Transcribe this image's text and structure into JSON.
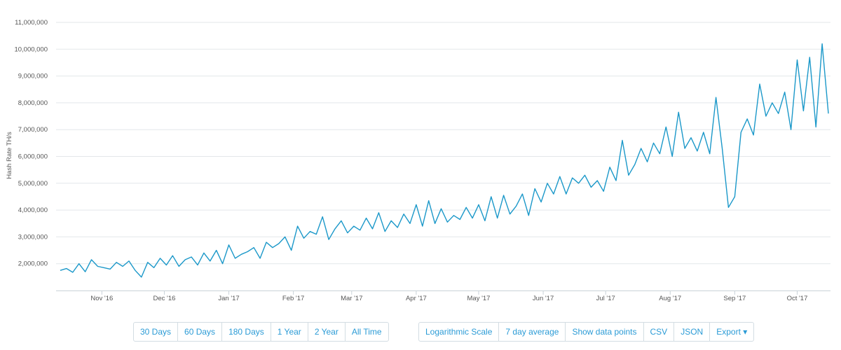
{
  "chart_data": {
    "type": "line",
    "title": "",
    "xlabel": "",
    "ylabel": "Hash Rate TH/s",
    "y_ticks": [
      2000000,
      3000000,
      4000000,
      5000000,
      6000000,
      7000000,
      8000000,
      9000000,
      10000000,
      11000000
    ],
    "y_tick_labels": [
      "2,000,000",
      "3,000,000",
      "4,000,000",
      "5,000,000",
      "6,000,000",
      "7,000,000",
      "8,000,000",
      "9,000,000",
      "10,000,000",
      "11,000,000"
    ],
    "ylim": [
      1000000,
      11000000
    ],
    "xlim": [
      "2016-10-10",
      "2017-10-17"
    ],
    "x_ticks": [
      "2016-11-01",
      "2016-12-01",
      "2017-01-01",
      "2017-02-01",
      "2017-03-01",
      "2017-04-01",
      "2017-05-01",
      "2017-06-01",
      "2017-07-01",
      "2017-08-01",
      "2017-09-01",
      "2017-10-01"
    ],
    "x_tick_labels": [
      "Nov '16",
      "Dec '16",
      "Jan '17",
      "Feb '17",
      "Mar '17",
      "Apr '17",
      "May '17",
      "Jun '17",
      "Jul '17",
      "Aug '17",
      "Sep '17",
      "Oct '17"
    ],
    "grid": true,
    "line_color": "#1b98c9",
    "series": [
      {
        "points": [
          [
            "2016-10-12",
            1750000
          ],
          [
            "2016-10-15",
            1820000
          ],
          [
            "2016-10-18",
            1680000
          ],
          [
            "2016-10-21",
            2000000
          ],
          [
            "2016-10-24",
            1700000
          ],
          [
            "2016-10-27",
            2150000
          ],
          [
            "2016-10-30",
            1900000
          ],
          [
            "2016-11-02",
            1850000
          ],
          [
            "2016-11-05",
            1800000
          ],
          [
            "2016-11-08",
            2050000
          ],
          [
            "2016-11-11",
            1900000
          ],
          [
            "2016-11-14",
            2100000
          ],
          [
            "2016-11-17",
            1750000
          ],
          [
            "2016-11-20",
            1500000
          ],
          [
            "2016-11-23",
            2050000
          ],
          [
            "2016-11-26",
            1850000
          ],
          [
            "2016-11-29",
            2200000
          ],
          [
            "2016-12-02",
            1950000
          ],
          [
            "2016-12-05",
            2300000
          ],
          [
            "2016-12-08",
            1900000
          ],
          [
            "2016-12-11",
            2150000
          ],
          [
            "2016-12-14",
            2250000
          ],
          [
            "2016-12-17",
            1950000
          ],
          [
            "2016-12-20",
            2400000
          ],
          [
            "2016-12-23",
            2100000
          ],
          [
            "2016-12-26",
            2500000
          ],
          [
            "2016-12-29",
            2000000
          ],
          [
            "2017-01-01",
            2700000
          ],
          [
            "2017-01-04",
            2200000
          ],
          [
            "2017-01-07",
            2350000
          ],
          [
            "2017-01-10",
            2450000
          ],
          [
            "2017-01-13",
            2600000
          ],
          [
            "2017-01-16",
            2200000
          ],
          [
            "2017-01-19",
            2800000
          ],
          [
            "2017-01-22",
            2600000
          ],
          [
            "2017-01-25",
            2750000
          ],
          [
            "2017-01-28",
            3000000
          ],
          [
            "2017-01-31",
            2500000
          ],
          [
            "2017-02-03",
            3400000
          ],
          [
            "2017-02-06",
            2950000
          ],
          [
            "2017-02-09",
            3200000
          ],
          [
            "2017-02-12",
            3100000
          ],
          [
            "2017-02-15",
            3750000
          ],
          [
            "2017-02-18",
            2900000
          ],
          [
            "2017-02-21",
            3300000
          ],
          [
            "2017-02-24",
            3600000
          ],
          [
            "2017-02-27",
            3150000
          ],
          [
            "2017-03-02",
            3400000
          ],
          [
            "2017-03-05",
            3250000
          ],
          [
            "2017-03-08",
            3700000
          ],
          [
            "2017-03-11",
            3300000
          ],
          [
            "2017-03-14",
            3900000
          ],
          [
            "2017-03-17",
            3200000
          ],
          [
            "2017-03-20",
            3600000
          ],
          [
            "2017-03-23",
            3350000
          ],
          [
            "2017-03-26",
            3850000
          ],
          [
            "2017-03-29",
            3500000
          ],
          [
            "2017-04-01",
            4200000
          ],
          [
            "2017-04-04",
            3400000
          ],
          [
            "2017-04-07",
            4350000
          ],
          [
            "2017-04-10",
            3500000
          ],
          [
            "2017-04-13",
            4050000
          ],
          [
            "2017-04-16",
            3550000
          ],
          [
            "2017-04-19",
            3800000
          ],
          [
            "2017-04-22",
            3650000
          ],
          [
            "2017-04-25",
            4100000
          ],
          [
            "2017-04-28",
            3700000
          ],
          [
            "2017-05-01",
            4200000
          ],
          [
            "2017-05-04",
            3600000
          ],
          [
            "2017-05-07",
            4500000
          ],
          [
            "2017-05-10",
            3700000
          ],
          [
            "2017-05-13",
            4550000
          ],
          [
            "2017-05-16",
            3850000
          ],
          [
            "2017-05-19",
            4150000
          ],
          [
            "2017-05-22",
            4600000
          ],
          [
            "2017-05-25",
            3800000
          ],
          [
            "2017-05-28",
            4800000
          ],
          [
            "2017-05-31",
            4300000
          ],
          [
            "2017-06-03",
            5000000
          ],
          [
            "2017-06-06",
            4600000
          ],
          [
            "2017-06-09",
            5250000
          ],
          [
            "2017-06-12",
            4600000
          ],
          [
            "2017-06-15",
            5200000
          ],
          [
            "2017-06-18",
            5000000
          ],
          [
            "2017-06-21",
            5300000
          ],
          [
            "2017-06-24",
            4850000
          ],
          [
            "2017-06-27",
            5100000
          ],
          [
            "2017-06-30",
            4700000
          ],
          [
            "2017-07-03",
            5600000
          ],
          [
            "2017-07-06",
            5100000
          ],
          [
            "2017-07-09",
            6600000
          ],
          [
            "2017-07-12",
            5300000
          ],
          [
            "2017-07-15",
            5700000
          ],
          [
            "2017-07-18",
            6300000
          ],
          [
            "2017-07-21",
            5800000
          ],
          [
            "2017-07-24",
            6500000
          ],
          [
            "2017-07-27",
            6100000
          ],
          [
            "2017-07-30",
            7100000
          ],
          [
            "2017-08-02",
            6000000
          ],
          [
            "2017-08-05",
            7650000
          ],
          [
            "2017-08-08",
            6300000
          ],
          [
            "2017-08-11",
            6700000
          ],
          [
            "2017-08-14",
            6200000
          ],
          [
            "2017-08-17",
            6900000
          ],
          [
            "2017-08-20",
            6100000
          ],
          [
            "2017-08-23",
            8200000
          ],
          [
            "2017-08-26",
            6300000
          ],
          [
            "2017-08-29",
            4100000
          ],
          [
            "2017-09-01",
            4500000
          ],
          [
            "2017-09-04",
            6900000
          ],
          [
            "2017-09-07",
            7400000
          ],
          [
            "2017-09-10",
            6800000
          ],
          [
            "2017-09-13",
            8700000
          ],
          [
            "2017-09-16",
            7500000
          ],
          [
            "2017-09-19",
            8000000
          ],
          [
            "2017-09-22",
            7600000
          ],
          [
            "2017-09-25",
            8400000
          ],
          [
            "2017-09-28",
            7000000
          ],
          [
            "2017-10-01",
            9600000
          ],
          [
            "2017-10-04",
            7700000
          ],
          [
            "2017-10-07",
            9700000
          ],
          [
            "2017-10-10",
            7100000
          ],
          [
            "2017-10-13",
            10200000
          ],
          [
            "2017-10-16",
            7600000
          ]
        ]
      }
    ]
  },
  "controls": {
    "range_buttons": [
      "30 Days",
      "60 Days",
      "180 Days",
      "1 Year",
      "2 Year",
      "All Time"
    ],
    "option_buttons": [
      "Logarithmic Scale",
      "7 day average",
      "Show data points",
      "CSV",
      "JSON",
      "Export ▾"
    ]
  }
}
